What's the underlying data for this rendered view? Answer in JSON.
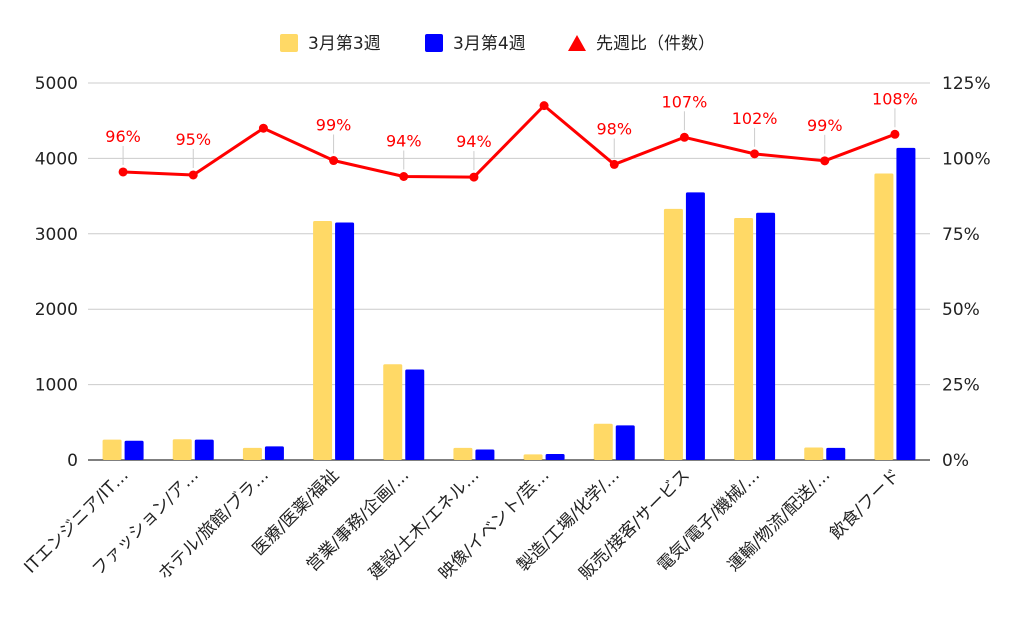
{
  "chart_data": {
    "type": "bar",
    "title": "",
    "xlabel": "",
    "ylabel": "",
    "ylim": [
      0,
      5000
    ],
    "y_ticks": [
      "0",
      "1000",
      "2000",
      "3000",
      "4000",
      "5000"
    ],
    "y2lim": [
      0,
      125
    ],
    "y2_ticks": [
      "0%",
      "25%",
      "50%",
      "75%",
      "100%",
      "125%"
    ],
    "grid": true,
    "legend_position": "top",
    "categories": [
      "ITエンジニア/IT…",
      "ファッション/ア…",
      "ホテル/旅館/ブラ…",
      "医療/医薬/福祉",
      "営業/事務/企画/…",
      "建設/土木/エネル…",
      "映像/イベント/芸…",
      "製造/工場/化学/…",
      "販売/接客/サービス",
      "電気/電子/機械/…",
      "運輸/物流/配送/…",
      "飲食/フード"
    ],
    "series": [
      {
        "name": "3月第3週",
        "type": "bar",
        "color": "#ffd966",
        "values": [
          270,
          275,
          160,
          3170,
          1270,
          160,
          75,
          480,
          3330,
          3210,
          165,
          3800
        ]
      },
      {
        "name": "3月第4週",
        "type": "bar",
        "color": "#0000ff",
        "values": [
          255,
          270,
          180,
          3150,
          1200,
          140,
          80,
          460,
          3550,
          3280,
          160,
          4140
        ]
      },
      {
        "name": "先週比（件数）",
        "type": "line",
        "axis": "right",
        "color": "#ff0000",
        "values": [
          95.5,
          94.5,
          110,
          99.3,
          94,
          93.8,
          117.5,
          98,
          107,
          101.5,
          99.2,
          108
        ]
      }
    ],
    "data_labels": [
      "96%",
      "95%",
      "",
      "99%",
      "94%",
      "94%",
      "",
      "98%",
      "107%",
      "102%",
      "99%",
      "108%"
    ]
  }
}
